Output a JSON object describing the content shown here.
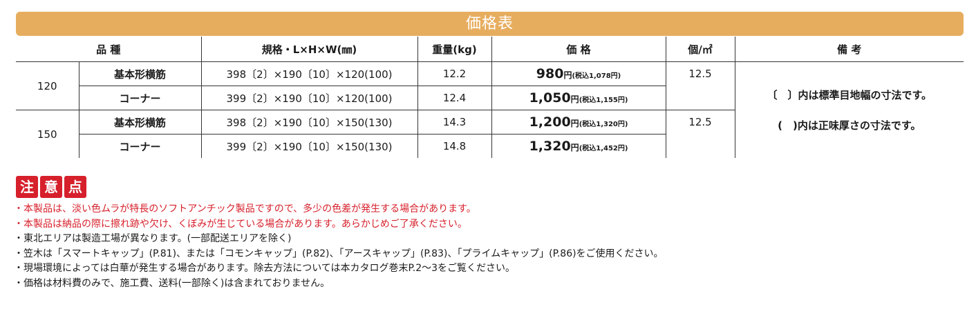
{
  "banner": {
    "title": "価格表"
  },
  "table": {
    "headers": {
      "type": "品 種",
      "spec": "規格・L×H×W(㎜)",
      "weight": "重量(kg)",
      "price": "価 格",
      "count": "個/㎡",
      "remarks": "備 考"
    },
    "groups": [
      {
        "size": "120"
      },
      {
        "size": "150"
      }
    ],
    "rows": [
      {
        "name": "基本形横筋",
        "spec": "398〔2〕×190〔10〕×120(100)",
        "weight": "12.2",
        "price": "980",
        "yen": "円",
        "tax": "(税込1,078円)",
        "count": "12.5"
      },
      {
        "name": "コーナー",
        "spec": "399〔2〕×190〔10〕×120(100)",
        "weight": "12.4",
        "price": "1,050",
        "yen": "円",
        "tax": "(税込1,155円)",
        "count": ""
      },
      {
        "name": "基本形横筋",
        "spec": "398〔2〕×190〔10〕×150(130)",
        "weight": "14.3",
        "price": "1,200",
        "yen": "円",
        "tax": "(税込1,320円)",
        "count": "12.5"
      },
      {
        "name": "コーナー",
        "spec": "399〔2〕×190〔10〕×150(130)",
        "weight": "14.8",
        "price": "1,320",
        "yen": "円",
        "tax": "(税込1,452円)",
        "count": ""
      }
    ],
    "remarks": [
      "〔　〕内は標準目地幅の寸法です。",
      "(　)内は正味厚さの寸法です。"
    ]
  },
  "notice": {
    "badges": [
      "注",
      "意",
      "点"
    ],
    "items": [
      {
        "text": "・本製品は、淡い色ムラが特長のソフトアンチック製品ですので、多少の色差が発生する場合があります。",
        "color": "#d6202b"
      },
      {
        "text": "・本製品は納品の際に擦れ跡や欠け、くぼみが生じている場合があります。あらかじめご了承ください。",
        "color": "#d6202b"
      },
      {
        "text": "・東北エリアは製造工場が異なります。(一部配送エリアを除く)",
        "color": "#1a1a1a"
      },
      {
        "text": "・笠木は「スマートキャップ」(P.81)、または「コモンキャップ」(P.82)、「アースキャップ」(P.83)、「プライムキャップ」(P.86)をご使用ください。",
        "color": "#1a1a1a"
      },
      {
        "text": "・現場環境によっては白華が発生する場合があります。除去方法については本カタログ巻末P.2〜3をご覧ください。",
        "color": "#1a1a1a"
      },
      {
        "text": "・価格は材料費のみで、施工費、送料(一部除く)は含まれておりません。",
        "color": "#1a1a1a"
      }
    ]
  },
  "colors": {
    "banner": "#e7ad5f",
    "notice_red": "#d6202b"
  }
}
